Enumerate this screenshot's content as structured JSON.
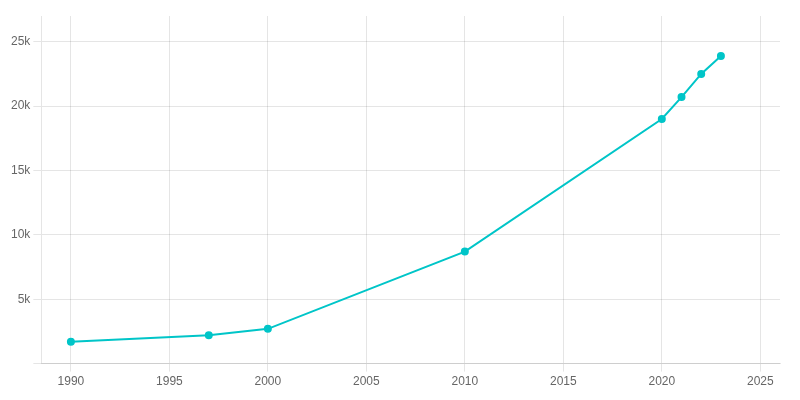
{
  "chart_data": {
    "type": "line",
    "x": [
      1990,
      1997,
      2000,
      2010,
      2020,
      2021,
      2022,
      2023
    ],
    "values": [
      1700,
      2200,
      2700,
      8700,
      19000,
      20700,
      22500,
      23900
    ],
    "color": "#00C5C8",
    "marker": "o",
    "xlim": [
      1988.5,
      2026
    ],
    "xticks": [
      1990,
      1995,
      2000,
      2005,
      2010,
      2015,
      2020,
      2025
    ],
    "ylim": [
      0,
      27000
    ],
    "yticks": [
      {
        "value": 0,
        "label": null
      },
      {
        "value": 5000,
        "label": "5k"
      },
      {
        "value": 10000,
        "label": "10k"
      },
      {
        "value": 15000,
        "label": "15k"
      },
      {
        "value": 20000,
        "label": "20k"
      },
      {
        "value": 25000,
        "label": "25k"
      }
    ],
    "grid": true
  }
}
